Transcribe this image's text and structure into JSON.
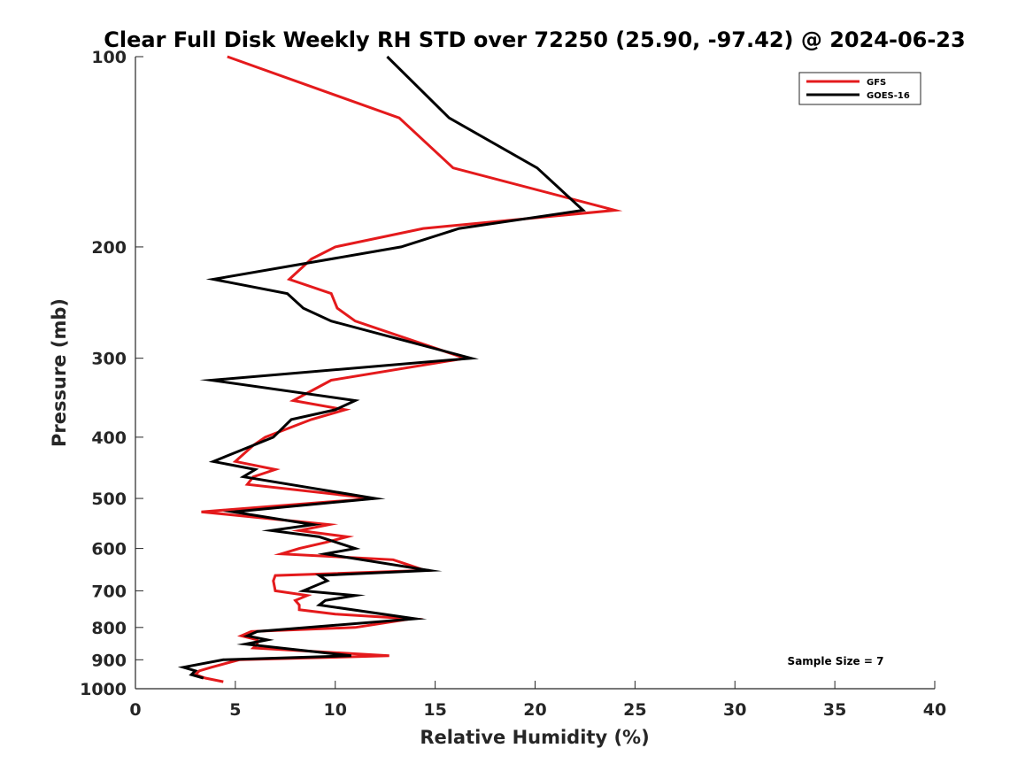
{
  "chart_data": {
    "type": "line",
    "title": "Clear Full Disk Weekly RH STD over 72250 (25.90, -97.42) @ 2024-06-23",
    "xlabel": "Relative Humidity (%)",
    "ylabel": "Pressure (mb)",
    "xlim": [
      0,
      40
    ],
    "ylim": [
      100,
      1000
    ],
    "y_scale": "log",
    "y_reversed": true,
    "x_ticks": [
      "0",
      "5",
      "10",
      "15",
      "20",
      "25",
      "30",
      "35",
      "40"
    ],
    "y_ticks": [
      "100",
      "200",
      "300",
      "400",
      "500",
      "600",
      "700",
      "800",
      "900",
      "1000"
    ],
    "grid": false,
    "legend_position": "top-right",
    "annotation": "Sample Size = 7",
    "series": [
      {
        "name": "GFS",
        "color": "#e41a1c",
        "points": [
          [
            4.6,
            100
          ],
          [
            13.2,
            125
          ],
          [
            15.9,
            150
          ],
          [
            24.0,
            175
          ],
          [
            14.4,
            187
          ],
          [
            10.0,
            200
          ],
          [
            8.8,
            209
          ],
          [
            7.7,
            225
          ],
          [
            9.8,
            237
          ],
          [
            10.1,
            250
          ],
          [
            11.0,
            262
          ],
          [
            16.5,
            300
          ],
          [
            9.8,
            325
          ],
          [
            7.9,
            350
          ],
          [
            10.5,
            362
          ],
          [
            8.8,
            375
          ],
          [
            6.5,
            400
          ],
          [
            5.9,
            412
          ],
          [
            5.0,
            437
          ],
          [
            7.0,
            450
          ],
          [
            5.9,
            462
          ],
          [
            5.6,
            475
          ],
          [
            11.9,
            500
          ],
          [
            3.3,
            525
          ],
          [
            9.7,
            550
          ],
          [
            8.2,
            562
          ],
          [
            10.6,
            575
          ],
          [
            9.5,
            587
          ],
          [
            8.2,
            600
          ],
          [
            7.3,
            612
          ],
          [
            12.9,
            625
          ],
          [
            14.5,
            650
          ],
          [
            7.0,
            662
          ],
          [
            6.9,
            675
          ],
          [
            7.0,
            700
          ],
          [
            8.6,
            712
          ],
          [
            8.0,
            725
          ],
          [
            8.2,
            737
          ],
          [
            8.2,
            750
          ],
          [
            10.0,
            762
          ],
          [
            13.8,
            775
          ],
          [
            11.0,
            800
          ],
          [
            5.8,
            812
          ],
          [
            5.3,
            825
          ],
          [
            6.1,
            837
          ],
          [
            6.1,
            850
          ],
          [
            5.9,
            862
          ],
          [
            12.7,
            887
          ],
          [
            5.2,
            900
          ],
          [
            3.8,
            925
          ],
          [
            3.2,
            937
          ],
          [
            3.0,
            950
          ],
          [
            3.5,
            962
          ],
          [
            4.4,
            975
          ]
        ]
      },
      {
        "name": "GOES-16",
        "color": "#000000",
        "points": [
          [
            12.6,
            100
          ],
          [
            15.7,
            125
          ],
          [
            20.1,
            150
          ],
          [
            22.4,
            175
          ],
          [
            16.2,
            187
          ],
          [
            13.3,
            200
          ],
          [
            3.9,
            225
          ],
          [
            7.6,
            237
          ],
          [
            8.4,
            250
          ],
          [
            9.8,
            262
          ],
          [
            16.8,
            300
          ],
          [
            3.8,
            325
          ],
          [
            11.0,
            350
          ],
          [
            10.0,
            362
          ],
          [
            7.8,
            375
          ],
          [
            6.9,
            400
          ],
          [
            3.9,
            437
          ],
          [
            6.0,
            450
          ],
          [
            5.4,
            462
          ],
          [
            12.0,
            500
          ],
          [
            4.9,
            525
          ],
          [
            8.9,
            550
          ],
          [
            6.8,
            562
          ],
          [
            9.2,
            575
          ],
          [
            11.0,
            600
          ],
          [
            9.5,
            612
          ],
          [
            14.7,
            650
          ],
          [
            9.2,
            662
          ],
          [
            9.6,
            675
          ],
          [
            8.4,
            700
          ],
          [
            11.0,
            712
          ],
          [
            9.5,
            725
          ],
          [
            9.2,
            737
          ],
          [
            14.0,
            775
          ],
          [
            6.1,
            812
          ],
          [
            5.6,
            825
          ],
          [
            6.6,
            837
          ],
          [
            5.5,
            850
          ],
          [
            10.8,
            887
          ],
          [
            4.4,
            900
          ],
          [
            2.4,
            925
          ],
          [
            3.0,
            937
          ],
          [
            2.8,
            950
          ],
          [
            3.4,
            962
          ]
        ]
      }
    ]
  }
}
